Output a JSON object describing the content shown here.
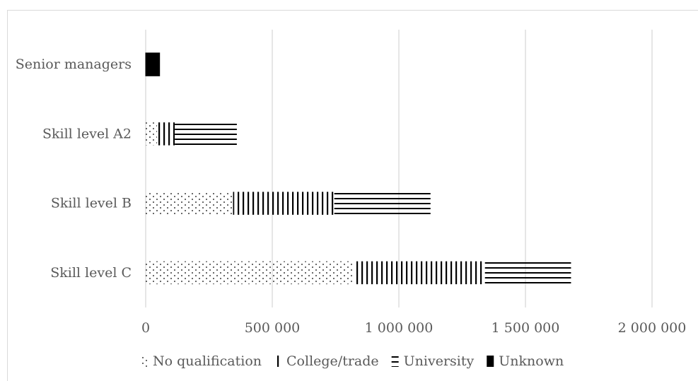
{
  "chart_data": {
    "type": "bar",
    "orientation": "horizontal",
    "stacked": true,
    "title": "",
    "xlabel": "",
    "ylabel": "",
    "categories": [
      "Senior managers",
      "Skill level A2",
      "Skill level B",
      "Skill level C"
    ],
    "series": [
      {
        "name": "No qualification",
        "pattern": "dots",
        "values": [
          0,
          45000,
          345000,
          820000
        ]
      },
      {
        "name": "College/trade",
        "pattern": "vertical-lines",
        "values": [
          0,
          70000,
          400000,
          520000
        ]
      },
      {
        "name": "University",
        "pattern": "horizontal-lines",
        "values": [
          0,
          245000,
          380000,
          340000
        ]
      },
      {
        "name": "Unknown",
        "pattern": "solid",
        "values": [
          55000,
          0,
          0,
          0
        ]
      }
    ],
    "xlim": [
      0,
      2000000
    ],
    "xticks": [
      0,
      500000,
      1000000,
      1500000,
      2000000
    ],
    "xtick_labels": [
      "0",
      "500 000",
      "1 000 000",
      "1 500 000",
      "2 000 000"
    ],
    "grid": "vertical",
    "legend_position": "bottom",
    "colors": {
      "ink": "#000000",
      "grid": "#d9d9d9",
      "text": "#595959"
    }
  }
}
